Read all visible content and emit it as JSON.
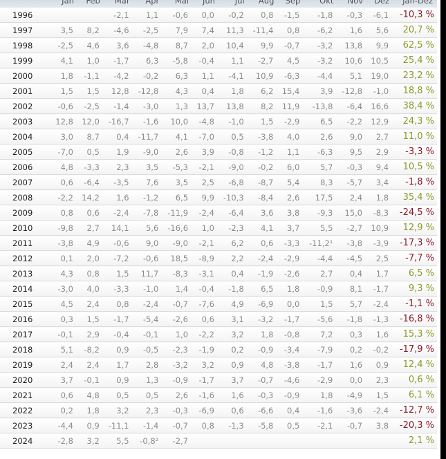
{
  "columns": [
    "",
    "Jan",
    "Feb",
    "Mär",
    "Apr",
    "Mai",
    "Jun",
    "Jul",
    "Aug",
    "Sep",
    "Okt",
    "Nov",
    "Dez",
    "Jan-Dez"
  ],
  "colors": {
    "positive": "#8a9a2a",
    "negative": "#8b1a2a"
  },
  "rows": [
    {
      "year": "1996",
      "m": [
        "",
        "",
        "-2,1",
        "1,1",
        "-0,6",
        "0,0",
        "-0,2",
        "0,8",
        "-1,5",
        "-1,8",
        "-0,3",
        "-6,1"
      ],
      "total": "-10,3 %"
    },
    {
      "year": "1997",
      "m": [
        "3,5",
        "8,2",
        "-4,6",
        "-2,5",
        "7,9",
        "7,4",
        "11,3",
        "-11,4",
        "0,8",
        "-6,2",
        "1,6",
        "5,6"
      ],
      "total": "20,7 %"
    },
    {
      "year": "1998",
      "m": [
        "-2,5",
        "4,6",
        "3,6",
        "-4,8",
        "8,7",
        "2,0",
        "10,4",
        "9,9",
        "-0,7",
        "-3,2",
        "13,8",
        "9,9"
      ],
      "total": "62,5 %"
    },
    {
      "year": "1999",
      "m": [
        "4,1",
        "1,0",
        "-1,7",
        "6,3",
        "-5,8",
        "-0,4",
        "1,1",
        "-2,7",
        "4,5",
        "-3,2",
        "10,6",
        "10,5"
      ],
      "total": "25,4 %"
    },
    {
      "year": "2000",
      "m": [
        "1,8",
        "-1,1",
        "-4,2",
        "-0,2",
        "6,3",
        "1,1",
        "-4,1",
        "10,9",
        "-6,3",
        "-4,4",
        "5,1",
        "19,0"
      ],
      "total": "23,2 %"
    },
    {
      "year": "2001",
      "m": [
        "1,5",
        "1,5",
        "12,8",
        "-12,8",
        "4,3",
        "0,4",
        "1,8",
        "6,2",
        "15,4",
        "3,9",
        "-12,8",
        "-1,0"
      ],
      "total": "18,8 %"
    },
    {
      "year": "2002",
      "m": [
        "-0,6",
        "-2,5",
        "-1,4",
        "-3,0",
        "1,3",
        "13,7",
        "13,8",
        "8,2",
        "11,9",
        "-13,8",
        "-6,4",
        "16,6"
      ],
      "total": "38,4 %"
    },
    {
      "year": "2003",
      "m": [
        "12,8",
        "12,0",
        "-16,7",
        "-1,6",
        "10,0",
        "-4,8",
        "-1,0",
        "1,5",
        "-2,9",
        "6,5",
        "-2,2",
        "12,9"
      ],
      "total": "24,3 %"
    },
    {
      "year": "2004",
      "m": [
        "3,0",
        "8,7",
        "0,4",
        "-11,7",
        "4,1",
        "-7,0",
        "0,5",
        "-3,8",
        "4,0",
        "2,6",
        "9,0",
        "2,7"
      ],
      "total": "11,0 %"
    },
    {
      "year": "2005",
      "m": [
        "-7,0",
        "0,5",
        "1,9",
        "-9,0",
        "2,6",
        "3,9",
        "-0,8",
        "-1,2",
        "1,1",
        "-6,3",
        "9,5",
        "2,9"
      ],
      "total": "-3,3 %"
    },
    {
      "year": "2006",
      "m": [
        "4,8",
        "-3,3",
        "2,3",
        "3,5",
        "-5,3",
        "-2,1",
        "-9,0",
        "-0,2",
        "6,0",
        "5,7",
        "-0,3",
        "9,4"
      ],
      "total": "10,5 %"
    },
    {
      "year": "2007",
      "m": [
        "0,6",
        "-6,4",
        "-3,5",
        "7,6",
        "3,5",
        "2,5",
        "-6,8",
        "-8,7",
        "5,4",
        "8,3",
        "-5,7",
        "3,4"
      ],
      "total": "-1,8 %"
    },
    {
      "year": "2008",
      "m": [
        "-2,2",
        "14,2",
        "1,6",
        "-1,2",
        "6,5",
        "9,9",
        "-10,3",
        "-8,4",
        "2,6",
        "17,5",
        "2,4",
        "1,8"
      ],
      "total": "35,4 %"
    },
    {
      "year": "2009",
      "m": [
        "0,8",
        "0,6",
        "-2,4",
        "-7,8",
        "-11,9",
        "-2,4",
        "-6,4",
        "3,6",
        "3,8",
        "-9,3",
        "15,0",
        "-8,3"
      ],
      "total": "-24,5 %"
    },
    {
      "year": "2010",
      "m": [
        "-9,8",
        "2,7",
        "14,1",
        "5,6",
        "-16,6",
        "1,0",
        "-2,3",
        "4,1",
        "3,7",
        "5,5",
        "-2,7",
        "10,9"
      ],
      "total": "12,9 %"
    },
    {
      "year": "2011",
      "m": [
        "-3,8",
        "4,9",
        "-0,6",
        "9,0",
        "-9,0",
        "-2,1",
        "6,2",
        "0,6",
        "-3,3",
        "-11,2¹",
        "-3,8",
        "-3,9"
      ],
      "total": "-17,3 %"
    },
    {
      "year": "2012",
      "m": [
        "0,1",
        "2,0",
        "-7,2",
        "-0,6",
        "18,5",
        "-8,9",
        "2,2",
        "-2,4",
        "-2,9",
        "-4,4",
        "-4,5",
        "2,5"
      ],
      "total": "-7,7 %"
    },
    {
      "year": "2013",
      "m": [
        "4,3",
        "0,8",
        "1,5",
        "11,7",
        "-8,3",
        "-3,1",
        "0,4",
        "-1,9",
        "-2,6",
        "2,7",
        "0,4",
        "1,7"
      ],
      "total": "6,5 %"
    },
    {
      "year": "2014",
      "m": [
        "-3,0",
        "4,0",
        "-3,3",
        "-1,0",
        "1,4",
        "-0,4",
        "-1,8",
        "6,5",
        "1,8",
        "-0,9",
        "8,1",
        "-1,7"
      ],
      "total": "9,3 %"
    },
    {
      "year": "2015",
      "m": [
        "4,5",
        "2,4",
        "0,8",
        "-2,4",
        "-0,7",
        "-7,6",
        "4,9",
        "-6,9",
        "0,0",
        "1,5",
        "5,7",
        "-2,4"
      ],
      "total": "-1,1 %"
    },
    {
      "year": "2016",
      "m": [
        "0,3",
        "1,5",
        "-1,7",
        "-5,4",
        "-2,6",
        "0,6",
        "3,1",
        "-3,2",
        "-1,7",
        "-5,6",
        "-1,8",
        "-1,3"
      ],
      "total": "-16,8 %"
    },
    {
      "year": "2017",
      "m": [
        "-0,1",
        "2,9",
        "-0,4",
        "-0,1",
        "1,0",
        "-2,2",
        "3,2",
        "1,8",
        "-0,8",
        "7,2",
        "0,3",
        "1,6"
      ],
      "total": "15,3 %"
    },
    {
      "year": "2018",
      "m": [
        "5,1",
        "-8,2",
        "0,9",
        "-0,5",
        "-2,3",
        "-1,9",
        "0,2",
        "-0,9",
        "-3,4",
        "-7,9",
        "0,2",
        "-0,2"
      ],
      "total": "-17,9 %"
    },
    {
      "year": "2019",
      "m": [
        "2,4",
        "2,4",
        "1,7",
        "2,8",
        "-3,2",
        "3,2",
        "0,9",
        "4,8",
        "-3,8",
        "-1,7",
        "1,6",
        "0,9"
      ],
      "total": "12,4 %"
    },
    {
      "year": "2020",
      "m": [
        "3,7",
        "-0,1",
        "0,9",
        "1,3",
        "-0,9",
        "-1,7",
        "3,7",
        "-0,7",
        "-4,6",
        "-2,9",
        "0,0",
        "2,3"
      ],
      "total": "0,6 %"
    },
    {
      "year": "2021",
      "m": [
        "0,6",
        "4,8",
        "0,5",
        "0,5",
        "2,6",
        "-1,6",
        "1,6",
        "-0,3",
        "-0,9",
        "1,8",
        "-4,9",
        "1,5"
      ],
      "total": "6,1 %"
    },
    {
      "year": "2022",
      "m": [
        "0,2",
        "1,8",
        "3,2",
        "2,3",
        "-0,3",
        "-6,9",
        "0,6",
        "-6,6",
        "0,4",
        "-1,6",
        "-3,6",
        "-2,4"
      ],
      "total": "-12,7 %"
    },
    {
      "year": "2023",
      "m": [
        "-4,4",
        "0,9",
        "-11,1",
        "-1,4",
        "-0,7",
        "0,8",
        "-1,3",
        "-5,8",
        "0,5",
        "-2,1",
        "-0,7",
        "3,8"
      ],
      "total": "-20,3 %"
    },
    {
      "year": "2024",
      "m": [
        "-2,8",
        "3,2",
        "5,5",
        "-0,8²",
        "-2,7",
        "",
        "",
        "",
        "",
        "",
        "",
        ""
      ],
      "total": "2,1 %"
    }
  ]
}
